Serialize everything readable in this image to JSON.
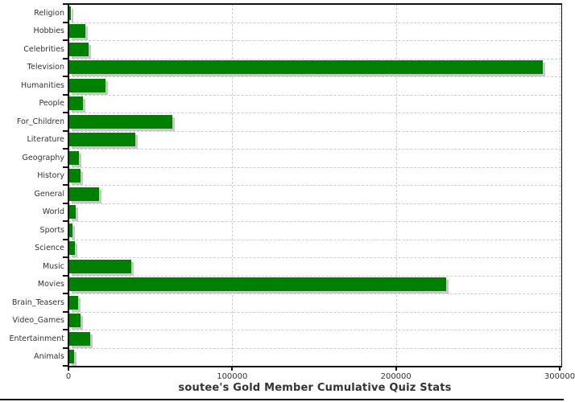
{
  "chart_data": {
    "type": "bar",
    "orientation": "horizontal",
    "title": "soutee's Gold Member Cumulative Quiz Stats",
    "categories": [
      "Religion",
      "Hobbies",
      "Celebrities",
      "Television",
      "Humanities",
      "People",
      "For_Children",
      "Literature",
      "Geography",
      "History",
      "General",
      "World",
      "Sports",
      "Science",
      "Music",
      "Movies",
      "Brain_Teasers",
      "Video_Games",
      "Entertainment",
      "Animals"
    ],
    "values": [
      1200,
      9800,
      11600,
      289000,
      22000,
      8500,
      63000,
      40500,
      5800,
      6700,
      18200,
      4100,
      1800,
      3400,
      38000,
      230000,
      5400,
      6700,
      12600,
      3100
    ],
    "xlabel": "",
    "ylabel": "",
    "xlim": [
      0,
      300000
    ],
    "x_ticks": [
      0,
      100000,
      200000,
      300000
    ],
    "x_tick_labels": [
      "0",
      "100000",
      "200000",
      "300000"
    ],
    "grid": "dashed",
    "legend": "none",
    "colors": {
      "bar": "#008000",
      "bar_shadow": "#c8c8c8",
      "grid": "#cccccc",
      "axis": "#111111",
      "text": "#333333"
    }
  }
}
